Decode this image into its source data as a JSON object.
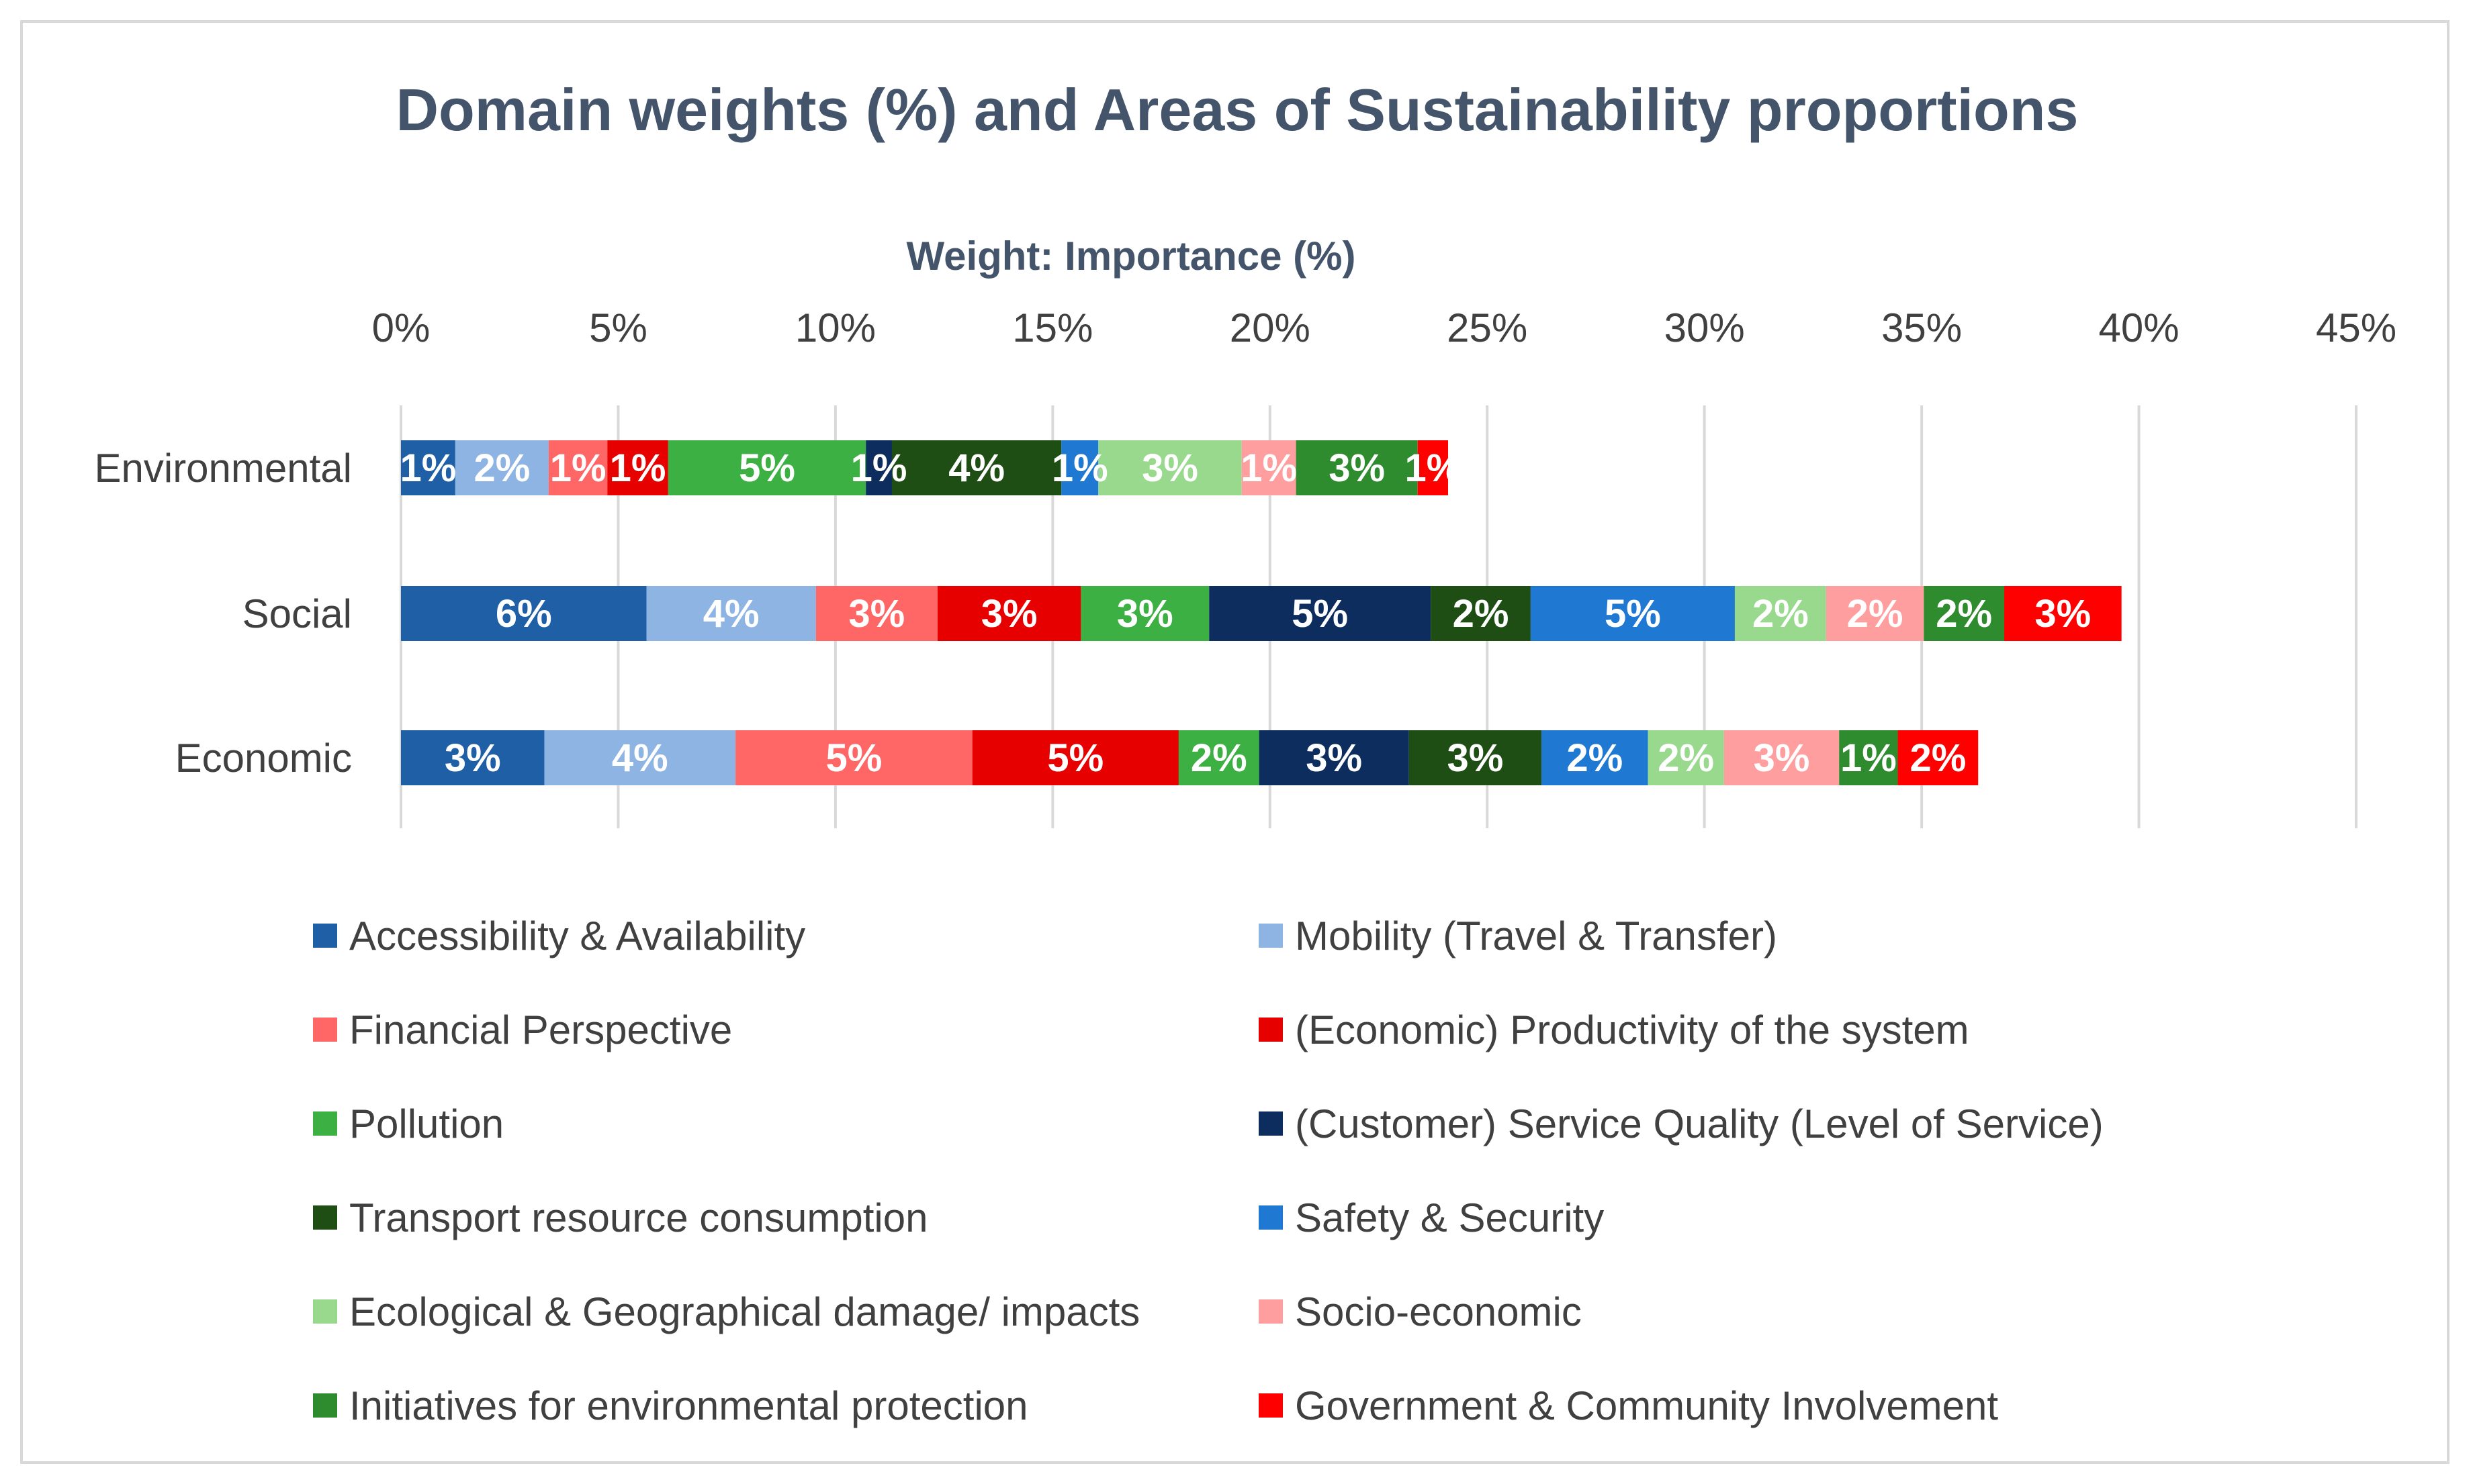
{
  "chart_data": {
    "type": "bar",
    "orientation": "horizontal",
    "stacked": true,
    "title": "Domain weights (%) and Areas of Sustainability proportions",
    "xlabel": "Weight: Importance (%)",
    "ylabel": "",
    "xlim": [
      0,
      45
    ],
    "x_ticks": [
      {
        "value": 0,
        "label": "0%"
      },
      {
        "value": 5,
        "label": "5%"
      },
      {
        "value": 10,
        "label": "10%"
      },
      {
        "value": 15,
        "label": "15%"
      },
      {
        "value": 20,
        "label": "20%"
      },
      {
        "value": 25,
        "label": "25%"
      },
      {
        "value": 30,
        "label": "30%"
      },
      {
        "value": 35,
        "label": "35%"
      },
      {
        "value": 40,
        "label": "40%"
      },
      {
        "value": 45,
        "label": "45%"
      }
    ],
    "grid": true,
    "legend_position": "bottom",
    "categories": [
      "Environmental",
      "Social",
      "Economic"
    ],
    "series": [
      {
        "name": "Accessibility & Availability",
        "color": "#1f5fa6",
        "values": [
          1.25,
          5.65,
          3.3
        ],
        "labels": [
          "1%",
          "6%",
          "3%"
        ]
      },
      {
        "name": "Mobility (Travel & Transfer)",
        "color": "#8db4e2",
        "values": [
          2.15,
          3.9,
          4.4
        ],
        "labels": [
          "2%",
          "4%",
          "4%"
        ]
      },
      {
        "name": "Financial Perspective",
        "color": "#ff6666",
        "values": [
          1.35,
          2.8,
          5.45
        ],
        "labels": [
          "1%",
          "3%",
          "5%"
        ]
      },
      {
        "name": "(Economic) Productivity of the system",
        "color": "#e60000",
        "values": [
          1.4,
          3.3,
          4.75
        ],
        "labels": [
          "1%",
          "3%",
          "5%"
        ]
      },
      {
        "name": "Pollution",
        "color": "#3cb043",
        "values": [
          4.55,
          2.95,
          1.85
        ],
        "labels": [
          "5%",
          "3%",
          "2%"
        ]
      },
      {
        "name": "(Customer) Service Quality (Level of Service)",
        "color": "#0d2d5e",
        "values": [
          0.6,
          5.1,
          3.45
        ],
        "labels": [
          "1%",
          "5%",
          "3%"
        ]
      },
      {
        "name": "Transport resource consumption",
        "color": "#1f4e14",
        "values": [
          3.9,
          2.3,
          3.05
        ],
        "labels": [
          "4%",
          "2%",
          "3%"
        ]
      },
      {
        "name": "Safety & Security",
        "color": "#1f78d1",
        "values": [
          0.85,
          4.7,
          2.45
        ],
        "labels": [
          "1%",
          "5%",
          "2%"
        ]
      },
      {
        "name": "Ecological & Geographical damage/ impacts",
        "color": "#98d98e",
        "values": [
          3.3,
          2.1,
          1.75
        ],
        "labels": [
          "3%",
          "2%",
          "2%"
        ]
      },
      {
        "name": "Socio-economic",
        "color": "#ff9e9e",
        "values": [
          1.25,
          2.25,
          2.65
        ],
        "labels": [
          "1%",
          "2%",
          "3%"
        ]
      },
      {
        "name": "Initiatives for environmental protection",
        "color": "#2e8b2e",
        "values": [
          2.8,
          1.85,
          1.35
        ],
        "labels": [
          "3%",
          "2%",
          "1%"
        ]
      },
      {
        "name": "Government & Community Involvement",
        "color": "#ff0000",
        "values": [
          0.7,
          2.7,
          1.85
        ],
        "labels": [
          "1%",
          "3%",
          "2%"
        ]
      }
    ]
  }
}
